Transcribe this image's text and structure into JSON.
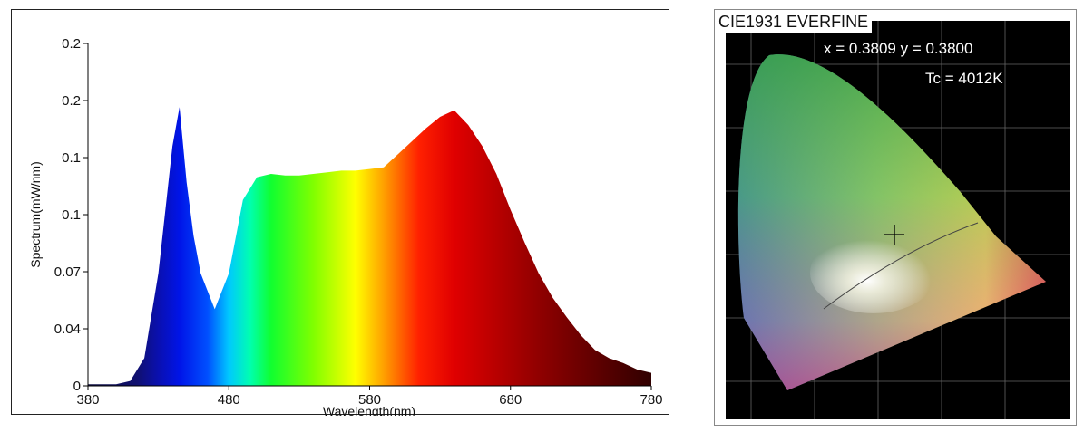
{
  "chart_data": [
    {
      "type": "area",
      "title": "",
      "xlabel": "Wavelength(nm)",
      "ylabel": "Spectrum(mW/nm)",
      "xlim": [
        380,
        780
      ],
      "ylim": [
        0,
        0.21
      ],
      "x_ticks": [
        "380",
        "480",
        "580",
        "680",
        "780"
      ],
      "y_ticks": [
        "0",
        "0.04",
        "0.07",
        "0.1",
        "0.1",
        "0.2",
        "0.2"
      ],
      "grid": false,
      "fill": "wavelength-colored spectrum",
      "x": [
        380,
        390,
        400,
        410,
        420,
        430,
        440,
        445,
        450,
        455,
        460,
        470,
        480,
        490,
        500,
        510,
        520,
        530,
        540,
        550,
        560,
        570,
        580,
        590,
        600,
        610,
        620,
        630,
        640,
        650,
        660,
        670,
        680,
        690,
        700,
        710,
        720,
        730,
        740,
        750,
        760,
        770,
        780
      ],
      "values": [
        0.001,
        0.001,
        0.001,
        0.003,
        0.017,
        0.069,
        0.147,
        0.171,
        0.125,
        0.092,
        0.069,
        0.047,
        0.069,
        0.114,
        0.128,
        0.13,
        0.129,
        0.129,
        0.13,
        0.131,
        0.132,
        0.132,
        0.133,
        0.134,
        0.142,
        0.15,
        0.158,
        0.165,
        0.169,
        0.16,
        0.147,
        0.13,
        0.108,
        0.088,
        0.069,
        0.054,
        0.042,
        0.031,
        0.022,
        0.017,
        0.014,
        0.01,
        0.008
      ]
    },
    {
      "type": "diagram",
      "title": "CIE1931 EVERFINE",
      "coordinates_label": "x = 0.3809 y = 0.3800",
      "cct_label": "Tc = 4012K",
      "x": 0.3809,
      "y": 0.38
    }
  ]
}
